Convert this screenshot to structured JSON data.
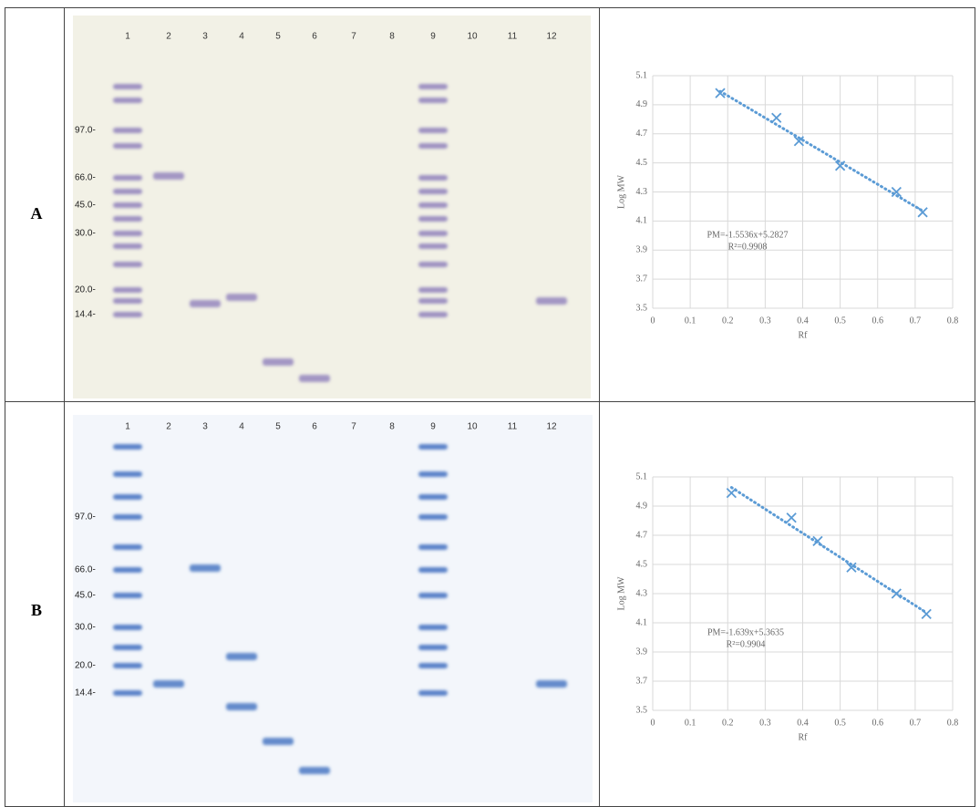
{
  "rows": [
    {
      "label": "A",
      "lanes": [
        "1",
        "2",
        "3",
        "4",
        "5",
        "6",
        "7",
        "8",
        "9",
        "10",
        "11",
        "12"
      ],
      "markers": [
        "97.0-",
        "66.0-",
        "45.0-",
        "30.0-",
        "20.0-",
        "14.4-"
      ]
    },
    {
      "label": "B",
      "lanes": [
        "1",
        "2",
        "3",
        "4",
        "5",
        "6",
        "7",
        "8",
        "9",
        "10",
        "11",
        "12"
      ],
      "markers": [
        "97.0-",
        "66.0-",
        "45.0-",
        "30.0-",
        "20.0-",
        "14.4-"
      ]
    }
  ],
  "chart_data": [
    {
      "type": "scatter",
      "xlabel": "Rf",
      "ylabel": "Log MW",
      "equation": "PM=-1.5536x+5.2827",
      "r2": "R²=0.9908",
      "x": [
        0.18,
        0.33,
        0.39,
        0.5,
        0.65,
        0.72
      ],
      "values": [
        4.98,
        4.81,
        4.65,
        4.48,
        4.3,
        4.16
      ],
      "xlim": [
        0,
        0.8
      ],
      "ylim": [
        3.5,
        5.1
      ],
      "xticks": [
        0,
        0.1,
        0.2,
        0.3,
        0.4,
        0.5,
        0.6,
        0.7,
        0.8
      ],
      "yticks": [
        3.5,
        3.7,
        3.9,
        4.1,
        4.3,
        4.5,
        4.7,
        4.9,
        5.1
      ],
      "color": "#5b9bd5",
      "grid": true,
      "trendline": true
    },
    {
      "type": "scatter",
      "xlabel": "Rf",
      "ylabel": "Log MW",
      "equation": "PM=-1.639x+5.3635",
      "r2": "R²=0.9904",
      "x": [
        0.21,
        0.37,
        0.44,
        0.53,
        0.65,
        0.73
      ],
      "values": [
        4.99,
        4.82,
        4.66,
        4.48,
        4.3,
        4.16
      ],
      "xlim": [
        0,
        0.8
      ],
      "ylim": [
        3.5,
        5.1
      ],
      "xticks": [
        0,
        0.1,
        0.2,
        0.3,
        0.4,
        0.5,
        0.6,
        0.7,
        0.8
      ],
      "yticks": [
        3.5,
        3.7,
        3.9,
        4.1,
        4.3,
        4.5,
        4.7,
        4.9,
        5.1
      ],
      "color": "#5b9bd5",
      "grid": true,
      "trendline": true
    }
  ]
}
